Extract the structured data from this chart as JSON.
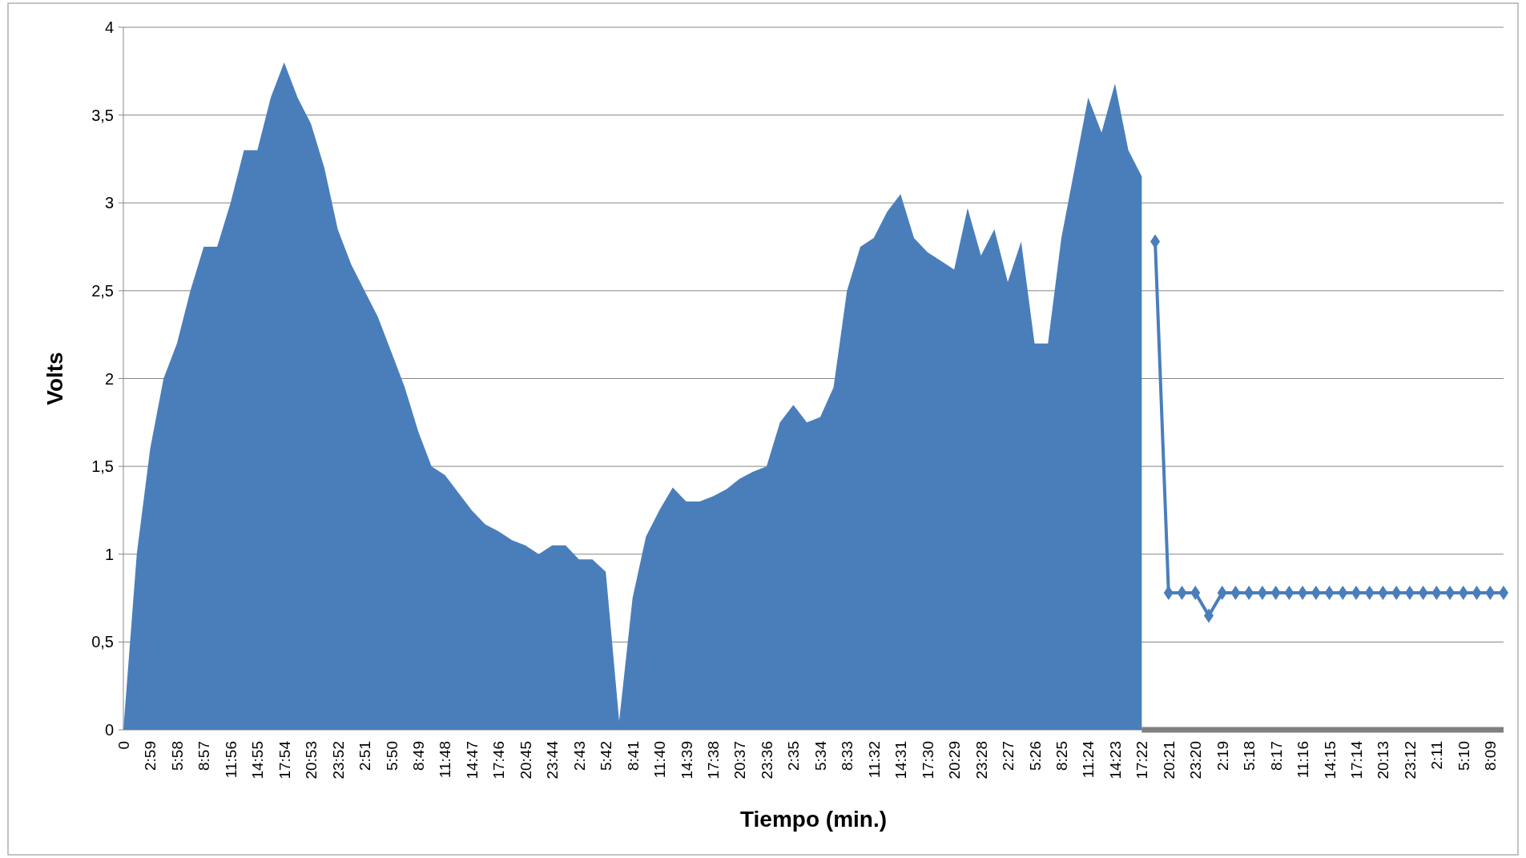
{
  "chart_data": {
    "type": "line",
    "xlabel": "Tiempo (min.)",
    "ylabel": "Volts",
    "marker": "diamond",
    "grid": "y",
    "categories": [
      "0",
      null,
      "2:59",
      null,
      "5:58",
      null,
      "8:57",
      null,
      "11:56",
      null,
      "14:55",
      null,
      "17:54",
      null,
      "20:53",
      null,
      "23:52",
      null,
      "2:51",
      null,
      "5:50",
      null,
      "8:49",
      null,
      "11:48",
      null,
      "14:47",
      null,
      "17:46",
      null,
      "20:45",
      null,
      "23:44",
      null,
      "2:43",
      null,
      "5:42",
      null,
      "8:41",
      null,
      "11:40",
      null,
      "14:39",
      null,
      "17:38",
      null,
      "20:37",
      null,
      "23:36",
      null,
      "2:35",
      null,
      "5:34",
      null,
      "8:33",
      null,
      "11:32",
      null,
      "14:31",
      null,
      "17:30",
      null,
      "20:29",
      null,
      "23:28",
      null,
      "2:27",
      null,
      "5:26",
      null,
      "8:25",
      null,
      "11:24",
      null,
      "14:23",
      null,
      "17:22",
      null,
      "20:21",
      null,
      "23:20",
      null,
      "2:19",
      null,
      "5:18",
      null,
      "8:17",
      null,
      "11:16",
      null,
      "14:15",
      null,
      "17:14",
      null,
      "20:13",
      null,
      "23:12",
      null,
      "2:11",
      null,
      "5:10",
      null,
      "8:09",
      null
    ],
    "ylim": [
      0,
      4
    ],
    "yticks": [
      0,
      {
        "value": 0.5,
        "label": "0,5"
      },
      1,
      {
        "value": 1.5,
        "label": "1,5"
      },
      2,
      {
        "value": 2.5,
        "label": "2,5"
      },
      3,
      {
        "value": 3.5,
        "label": "3,5"
      },
      4
    ],
    "series": [
      {
        "color": "#808080",
        "marker": "none",
        "values": [
          null,
          null,
          null,
          null,
          null,
          null,
          null,
          null,
          null,
          null,
          null,
          null,
          null,
          null,
          null,
          null,
          null,
          null,
          null,
          null,
          null,
          null,
          null,
          null,
          null,
          null,
          null,
          null,
          null,
          null,
          null,
          null,
          null,
          null,
          null,
          null,
          null,
          null,
          null,
          null,
          null,
          null,
          null,
          null,
          null,
          null,
          null,
          null,
          null,
          null,
          null,
          null,
          null,
          null,
          null,
          null,
          null,
          null,
          null,
          null,
          null,
          null,
          null,
          null,
          null,
          null,
          null,
          null,
          null,
          null,
          null,
          null,
          null,
          null,
          null,
          null,
          0,
          0,
          0,
          0,
          0,
          0,
          0,
          0,
          0,
          0,
          0,
          0,
          0,
          0,
          0,
          0,
          0,
          0,
          0,
          0,
          0,
          0,
          0,
          0,
          0,
          0,
          0,
          0
        ]
      },
      {
        "type": "area",
        "color": "#4a7ebb",
        "marker": "none",
        "values": [
          0,
          1.0,
          1.6,
          2.0,
          2.2,
          2.5,
          2.75,
          2.75,
          3.0,
          3.3,
          3.3,
          3.6,
          3.8,
          3.6,
          3.45,
          3.2,
          2.85,
          2.65,
          2.5,
          2.35,
          2.15,
          1.95,
          1.7,
          1.5,
          1.45,
          1.35,
          1.25,
          1.17,
          1.13,
          1.08,
          1.05,
          1.0,
          1.05,
          1.05,
          0.97,
          0.97,
          0.9,
          0.05,
          0.75,
          1.1,
          1.25,
          1.38,
          1.3,
          1.3,
          1.33,
          1.37,
          1.43,
          1.47,
          1.5,
          1.75,
          1.85,
          1.75,
          1.78,
          1.95,
          2.5,
          2.75,
          2.8,
          2.95,
          3.05,
          2.8,
          2.72,
          2.67,
          2.62,
          2.97,
          2.7,
          2.85,
          2.55,
          2.78,
          2.2,
          2.2,
          2.8,
          3.2,
          3.6,
          3.4,
          3.68,
          3.3,
          3.15,
          null,
          null,
          null,
          null,
          null,
          null,
          null,
          null,
          null,
          null,
          null,
          null,
          null,
          null,
          null,
          null,
          null,
          null,
          null,
          null,
          null,
          null,
          null,
          null,
          null,
          null,
          null
        ]
      },
      {
        "color": "#4a7ebb",
        "values": [
          null,
          null,
          null,
          null,
          null,
          null,
          null,
          null,
          null,
          null,
          null,
          null,
          null,
          null,
          null,
          null,
          null,
          null,
          null,
          null,
          null,
          null,
          null,
          null,
          null,
          null,
          null,
          null,
          null,
          null,
          null,
          null,
          null,
          null,
          null,
          null,
          null,
          null,
          null,
          null,
          null,
          null,
          null,
          null,
          null,
          null,
          null,
          null,
          null,
          null,
          null,
          null,
          null,
          null,
          null,
          null,
          null,
          null,
          null,
          null,
          null,
          null,
          null,
          null,
          null,
          null,
          null,
          null,
          null,
          null,
          null,
          null,
          null,
          null,
          null,
          null,
          null,
          2.78,
          0.78,
          0.78,
          0.78,
          0.65,
          0.78,
          0.78,
          0.78,
          0.78,
          0.78,
          0.78,
          0.78,
          0.78,
          0.78,
          0.78,
          0.78,
          0.78,
          0.78,
          0.78,
          0.78,
          0.78,
          0.78,
          0.78,
          0.78,
          0.78,
          0.78,
          0.78
        ]
      }
    ]
  }
}
